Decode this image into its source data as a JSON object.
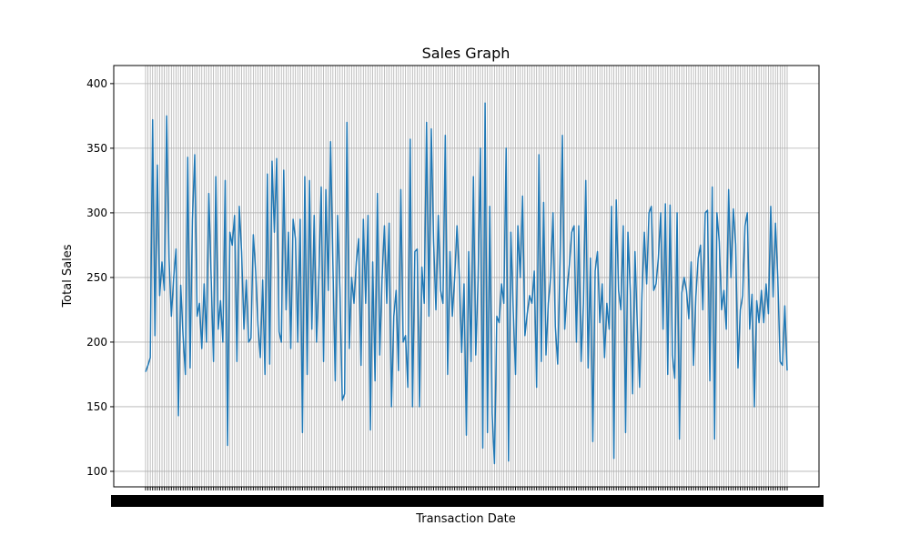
{
  "chart_data": {
    "type": "line",
    "title": "Sales Graph",
    "xlabel": "Transaction Date",
    "ylabel": "Total Sales",
    "ylim": [
      88,
      414
    ],
    "yticks": [
      100,
      150,
      200,
      250,
      300,
      350,
      400
    ],
    "grid": true,
    "legend": "none",
    "x_tick_labels": "overlapping date labels, illegible",
    "series": [
      {
        "color": "#1f77b4",
        "values": [
          177,
          182,
          188,
          372,
          205,
          337,
          236,
          262,
          240,
          375,
          265,
          220,
          250,
          272,
          143,
          244,
          205,
          175,
          343,
          180,
          295,
          345,
          220,
          230,
          195,
          245,
          200,
          315,
          250,
          185,
          328,
          210,
          232,
          200,
          325,
          120,
          285,
          275,
          298,
          185,
          305,
          270,
          210,
          248,
          200,
          203,
          283,
          255,
          213,
          188,
          248,
          175,
          330,
          183,
          340,
          285,
          342,
          208,
          200,
          333,
          225,
          285,
          195,
          295,
          280,
          200,
          295,
          130,
          328,
          175,
          325,
          210,
          298,
          200,
          250,
          320,
          185,
          318,
          240,
          355,
          260,
          170,
          298,
          240,
          155,
          160,
          370,
          195,
          250,
          230,
          262,
          280,
          182,
          295,
          230,
          298,
          132,
          262,
          170,
          315,
          190,
          250,
          290,
          230,
          292,
          150,
          220,
          240,
          178,
          318,
          200,
          205,
          165,
          357,
          150,
          270,
          272,
          150,
          258,
          230,
          370,
          220,
          365,
          278,
          225,
          298,
          240,
          230,
          360,
          175,
          270,
          220,
          250,
          290,
          250,
          192,
          245,
          128,
          270,
          185,
          328,
          190,
          248,
          350,
          118,
          385,
          130,
          305,
          145,
          106,
          220,
          215,
          245,
          230,
          350,
          108,
          285,
          225,
          175,
          290,
          250,
          313,
          205,
          222,
          236,
          230,
          255,
          165,
          345,
          185,
          308,
          190,
          230,
          250,
          300,
          212,
          183,
          262,
          360,
          210,
          240,
          260,
          285,
          290,
          200,
          290,
          185,
          230,
          325,
          180,
          265,
          123,
          255,
          270,
          215,
          245,
          188,
          230,
          210,
          305,
          110,
          310,
          240,
          225,
          290,
          130,
          285,
          240,
          160,
          270,
          213,
          165,
          237,
          285,
          245,
          300,
          305,
          240,
          245,
          265,
          300,
          210,
          307,
          175,
          306,
          190,
          172,
          300,
          125,
          238,
          250,
          240,
          218,
          262,
          182,
          235,
          265,
          275,
          225,
          300,
          302,
          170,
          320,
          125,
          300,
          278,
          225,
          240,
          210,
          318,
          250,
          303,
          276,
          180,
          225,
          236,
          290,
          300,
          210,
          237,
          150,
          232,
          215,
          240,
          215,
          245,
          222,
          305,
          235,
          292,
          250,
          185,
          182,
          228,
          178
        ]
      }
    ]
  }
}
